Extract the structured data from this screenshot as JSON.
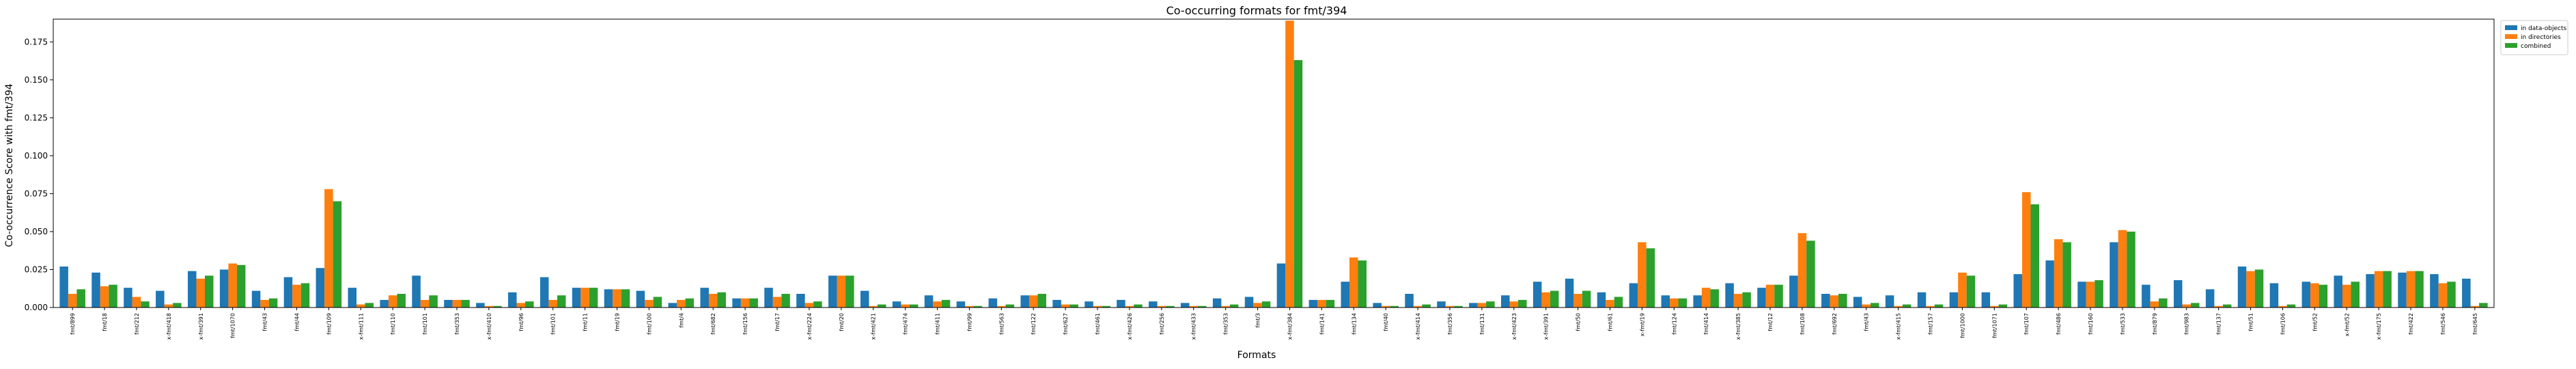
{
  "chart_data": {
    "type": "bar",
    "title": "Co-occurring formats for fmt/394",
    "xlabel": "Formats",
    "ylabel": "Co-occurrence Score with fmt/394",
    "ylim": [
      0,
      0.19
    ],
    "yticks": [
      0.0,
      0.025,
      0.05,
      0.075,
      0.1,
      0.125,
      0.15,
      0.175
    ],
    "ytick_labels": [
      "0.000",
      "0.025",
      "0.050",
      "0.075",
      "0.100",
      "0.125",
      "0.150",
      "0.175"
    ],
    "grid": false,
    "legend_position": "outside-top-right",
    "colors": [
      "#1f77b4",
      "#ff7f0e",
      "#2ca02c"
    ],
    "categories": [
      "fmt/899",
      "fmt/18",
      "fmt/212",
      "x-fmt/418",
      "x-fmt/391",
      "fmt/1070",
      "fmt/43",
      "fmt/44",
      "fmt/109",
      "x-fmt/111",
      "fmt/110",
      "fmt/101",
      "fmt/353",
      "x-fmt/410",
      "fmt/96",
      "fmt/101",
      "fmt/11",
      "fmt/19",
      "fmt/100",
      "fmt/4",
      "fmt/682",
      "fmt/156",
      "fmt/17",
      "x-fmt/224",
      "fmt/20",
      "x-fmt/421",
      "fmt/474",
      "fmt/411",
      "fmt/99",
      "fmt/563",
      "fmt/122",
      "fmt/627",
      "fmt/461",
      "x-fmt/426",
      "fmt/256",
      "x-fmt/433",
      "fmt/353",
      "fmt/3",
      "x-fmt/384",
      "fmt/141",
      "fmt/134",
      "fmt/40",
      "x-fmt/414",
      "fmt/356",
      "fmt/131",
      "x-fmt/423",
      "x-fmt/391",
      "fmt/50",
      "fmt/61",
      "x-fmt/19",
      "fmt/124",
      "fmt/414",
      "x-fmt/385",
      "fmt/12",
      "fmt/108",
      "fmt/692",
      "fmt/43",
      "x-fmt/415",
      "fmt/157",
      "fmt/1000",
      "fmt/1071",
      "fmt/107",
      "fmt/486",
      "fmt/160",
      "fmt/533",
      "fmt/879",
      "fmt/983",
      "fmt/137",
      "fmt/51",
      "fmt/106",
      "fmt/52",
      "x-fmt/52",
      "x-fmt/175",
      "fmt/422",
      "fmt/546",
      "fmt/645"
    ],
    "series": [
      {
        "name": "in data-objects",
        "values": [
          0.027,
          0.023,
          0.013,
          0.011,
          0.024,
          0.025,
          0.011,
          0.02,
          0.026,
          0.013,
          0.005,
          0.021,
          0.005,
          0.003,
          0.01,
          0.02,
          0.013,
          0.012,
          0.011,
          0.003,
          0.013,
          0.006,
          0.013,
          0.009,
          0.021,
          0.011,
          0.004,
          0.008,
          0.004,
          0.006,
          0.008,
          0.005,
          0.004,
          0.005,
          0.004,
          0.003,
          0.006,
          0.007,
          0.029,
          0.005,
          0.017,
          0.003,
          0.009,
          0.004,
          0.003,
          0.008,
          0.017,
          0.019,
          0.01,
          0.016,
          0.008,
          0.008,
          0.016,
          0.013,
          0.021,
          0.009,
          0.007,
          0.008,
          0.01,
          0.01,
          0.01,
          0.022,
          0.031,
          0.017,
          0.043,
          0.015,
          0.018,
          0.012,
          0.027,
          0.016,
          0.017,
          0.021,
          0.022,
          0.023,
          0.022,
          0.019
        ]
      },
      {
        "name": "in directories",
        "values": [
          0.009,
          0.014,
          0.007,
          0.002,
          0.019,
          0.029,
          0.005,
          0.015,
          0.078,
          0.002,
          0.008,
          0.005,
          0.005,
          0.001,
          0.003,
          0.005,
          0.013,
          0.012,
          0.005,
          0.005,
          0.009,
          0.006,
          0.007,
          0.003,
          0.021,
          0.001,
          0.002,
          0.004,
          0.001,
          0.001,
          0.008,
          0.002,
          0.001,
          0.001,
          0.001,
          0.001,
          0.001,
          0.003,
          0.189,
          0.005,
          0.033,
          0.001,
          0.001,
          0.001,
          0.003,
          0.004,
          0.01,
          0.009,
          0.005,
          0.043,
          0.006,
          0.013,
          0.009,
          0.015,
          0.049,
          0.008,
          0.002,
          0.001,
          0.001,
          0.023,
          0.001,
          0.076,
          0.045,
          0.017,
          0.051,
          0.004,
          0.002,
          0.001,
          0.024,
          0.001,
          0.016,
          0.015,
          0.024,
          0.024,
          0.016,
          0.001
        ]
      },
      {
        "name": "combined",
        "values": [
          0.012,
          0.015,
          0.004,
          0.003,
          0.021,
          0.028,
          0.006,
          0.016,
          0.07,
          0.003,
          0.009,
          0.008,
          0.005,
          0.001,
          0.004,
          0.008,
          0.013,
          0.012,
          0.007,
          0.006,
          0.01,
          0.006,
          0.009,
          0.004,
          0.021,
          0.002,
          0.002,
          0.005,
          0.001,
          0.002,
          0.009,
          0.002,
          0.001,
          0.002,
          0.001,
          0.001,
          0.002,
          0.004,
          0.163,
          0.005,
          0.031,
          0.001,
          0.002,
          0.001,
          0.004,
          0.005,
          0.011,
          0.011,
          0.007,
          0.039,
          0.006,
          0.012,
          0.01,
          0.015,
          0.044,
          0.009,
          0.003,
          0.002,
          0.002,
          0.021,
          0.002,
          0.068,
          0.043,
          0.018,
          0.05,
          0.006,
          0.003,
          0.002,
          0.025,
          0.002,
          0.015,
          0.017,
          0.024,
          0.024,
          0.017,
          0.003
        ]
      }
    ]
  }
}
